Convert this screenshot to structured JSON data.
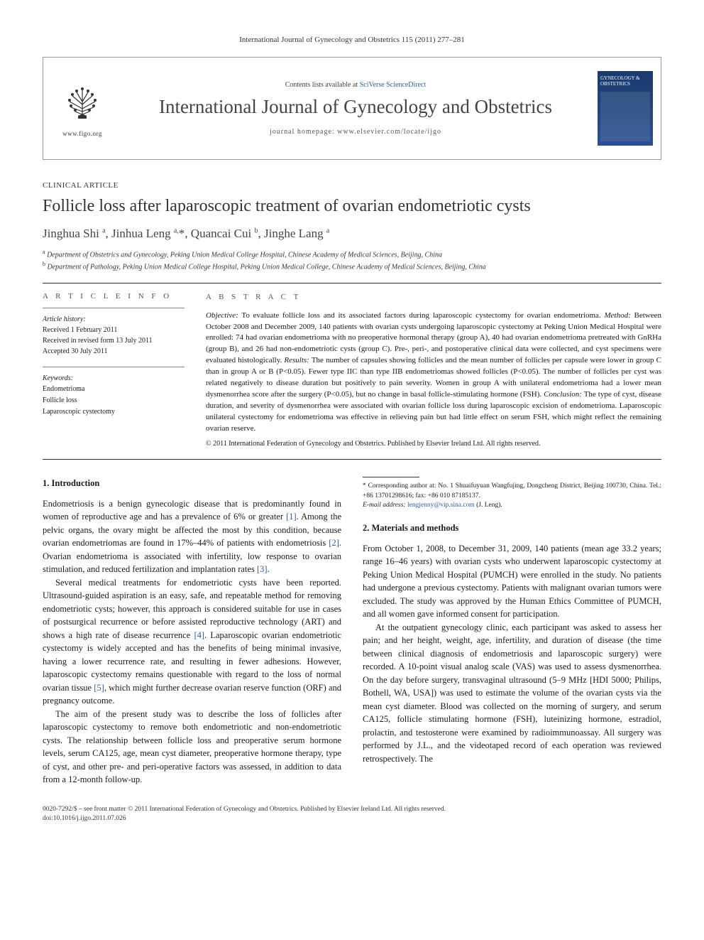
{
  "header": {
    "running_head": "International Journal of Gynecology and Obstetrics 115 (2011) 277–281",
    "contents_prefix": "Contents lists available at ",
    "contents_link_text": "SciVerse ScienceDirect",
    "journal_name": "International Journal of Gynecology and Obstetrics",
    "homepage_prefix": "journal homepage: ",
    "homepage_url": "www.elsevier.com/locate/ijgo",
    "logo_url": "www.figo.org",
    "cover_caption": "GYNECOLOGY & OBSTETRICS"
  },
  "article": {
    "type": "CLINICAL ARTICLE",
    "title": "Follicle loss after laparoscopic treatment of ovarian endometriotic cysts",
    "authors_html": "Jinghua Shi <sup>a</sup>, Jinhua Leng <sup>a,</sup>*, Quancai Cui <sup>b</sup>, Jinghe Lang <sup>a</sup>",
    "affiliations": [
      {
        "sup": "a",
        "text": "Department of Obstetrics and Gynecology, Peking Union Medical College Hospital, Chinese Academy of Medical Sciences, Beijing, China"
      },
      {
        "sup": "b",
        "text": "Department of Pathology, Peking Union Medical College Hospital, Peking Union Medical College, Chinese Academy of Medical Sciences, Beijing, China"
      }
    ]
  },
  "info": {
    "heading": "A R T I C L E   I N F O",
    "history_label": "Article history:",
    "history": [
      "Received 1 February 2011",
      "Received in revised form 13 July 2011",
      "Accepted 30 July 2011"
    ],
    "keywords_label": "Keywords:",
    "keywords": [
      "Endometrioma",
      "Follicle loss",
      "Laparoscopic cystectomy"
    ]
  },
  "abstract": {
    "heading": "A B S T R A C T",
    "text": "Objective: To evaluate follicle loss and its associated factors during laparoscopic cystectomy for ovarian endometrioma. Method: Between October 2008 and December 2009, 140 patients with ovarian cysts undergoing laparoscopic cystectomy at Peking Union Medical Hospital were enrolled: 74 had ovarian endometrioma with no preoperative hormonal therapy (group A), 40 had ovarian endometrioma pretreated with GnRHa (group B), and 26 had non-endometriotic cysts (group C). Pre-, peri-, and postoperative clinical data were collected, and cyst specimens were evaluated histologically. Results: The number of capsules showing follicles and the mean number of follicles per capsule were lower in group C than in group A or B (P<0.05). Fewer type IIC than type IIB endometriomas showed follicles (P<0.05). The number of follicles per cyst was related negatively to disease duration but positively to pain severity. Women in group A with unilateral endometrioma had a lower mean dysmenorrhea score after the surgery (P<0.05), but no change in basal follicle-stimulating hormone (FSH). Conclusion: The type of cyst, disease duration, and severity of dysmenorrhea were associated with ovarian follicle loss during laparoscopic excision of endometrioma. Laparoscopic unilateral cystectomy for endometrioma was effective in relieving pain but had little effect on serum FSH, which might reflect the remaining ovarian reserve.",
    "copyright": "© 2011 International Federation of Gynecology and Obstetrics. Published by Elsevier Ireland Ltd. All rights reserved."
  },
  "sections": {
    "s1": {
      "heading": "1. Introduction",
      "p1": "Endometriosis is a benign gynecologic disease that is predominantly found in women of reproductive age and has a prevalence of 6% or greater [1]. Among the pelvic organs, the ovary might be affected the most by this condition, because ovarian endometriomas are found in 17%–44% of patients with endometriosis [2]. Ovarian endometrioma is associated with infertility, low response to ovarian stimulation, and reduced fertilization and implantation rates [3].",
      "p2": "Several medical treatments for endometriotic cysts have been reported. Ultrasound-guided aspiration is an easy, safe, and repeatable method for removing endometriotic cysts; however, this approach is considered suitable for use in cases of postsurgical recurrence or before assisted reproductive technology (ART) and shows a high rate of disease recurrence [4]. Laparoscopic ovarian endometriotic cystectomy is widely accepted and has the benefits of being minimal invasive, having a lower recurrence rate, and resulting in fewer adhesions. However, laparoscopic cystectomy remains questionable with regard to the loss of normal ovarian tissue [5], which might further decrease ovarian reserve function (ORF) and pregnancy outcome.",
      "p3": "The aim of the present study was to describe the loss of follicles after laparoscopic cystectomy to remove both endometriotic and non-endometriotic cysts. The relationship between follicle loss and preoperative serum hormone levels, serum CA125, age, mean cyst diameter, preoperative hormone therapy, type of cyst, and other pre- and peri-operative factors was assessed, in addition to data from a 12-month follow-up."
    },
    "s2": {
      "heading": "2. Materials and methods",
      "p1": "From October 1, 2008, to December 31, 2009, 140 patients (mean age 33.2 years; range 16–46 years) with ovarian cysts who underwent laparoscopic cystectomy at Peking Union Medical Hospital (PUMCH) were enrolled in the study. No patients had undergone a previous cystectomy. Patients with malignant ovarian tumors were excluded. The study was approved by the Human Ethics Committee of PUMCH, and all women gave informed consent for participation.",
      "p2": "At the outpatient gynecology clinic, each participant was asked to assess her pain; and her height, weight, age, infertility, and duration of disease (the time between clinical diagnosis of endometriosis and laparoscopic surgery) were recorded. A 10-point visual analog scale (VAS) was used to assess dysmenorrhea. On the day before surgery, transvaginal ultrasound (5–9 MHz [HDI 5000; Philips, Bothell, WA, USA]) was used to estimate the volume of the ovarian cysts via the mean cyst diameter. Blood was collected on the morning of surgery, and serum CA125, follicle stimulating hormone (FSH), luteinizing hormone, estradiol, prolactin, and testosterone were examined by radioimmunoassay. All surgery was performed by J.L., and the videotaped record of each operation was reviewed retrospectively. The"
    }
  },
  "footnotes": {
    "corr": "* Corresponding author at: No. 1 Shuaifuyuan Wangfujing, Dongcheng District, Beijing 100730, China. Tel.: +86 13701298616; fax: +86 010 87185137.",
    "email_label": "E-mail address: ",
    "email": "lengjenny@vip.sina.com",
    "email_suffix": " (J. Leng)."
  },
  "footer": {
    "line1": "0020-7292/$ – see front matter © 2011 International Federation of Gynecology and Obstetrics. Published by Elsevier Ireland Ltd. All rights reserved.",
    "doi": "doi:10.1016/j.ijgo.2011.07.026"
  },
  "refs": {
    "r1": "[1]",
    "r2": "[2]",
    "r3": "[3]",
    "r4": "[4]",
    "r5": "[5]"
  },
  "style": {
    "page_bg": "#ffffff",
    "text_color": "#1a1a1a",
    "link_color": "#2a5db0",
    "rule_color": "#333333",
    "journal_name_fontsize": 27,
    "title_fontsize": 24,
    "authors_fontsize": 17,
    "body_fontsize": 12.5,
    "info_fontsize": 10,
    "abstract_fontsize": 11,
    "footnote_fontsize": 9.5,
    "cover_gradient": [
      "#1a3a6e",
      "#2a5090"
    ]
  }
}
